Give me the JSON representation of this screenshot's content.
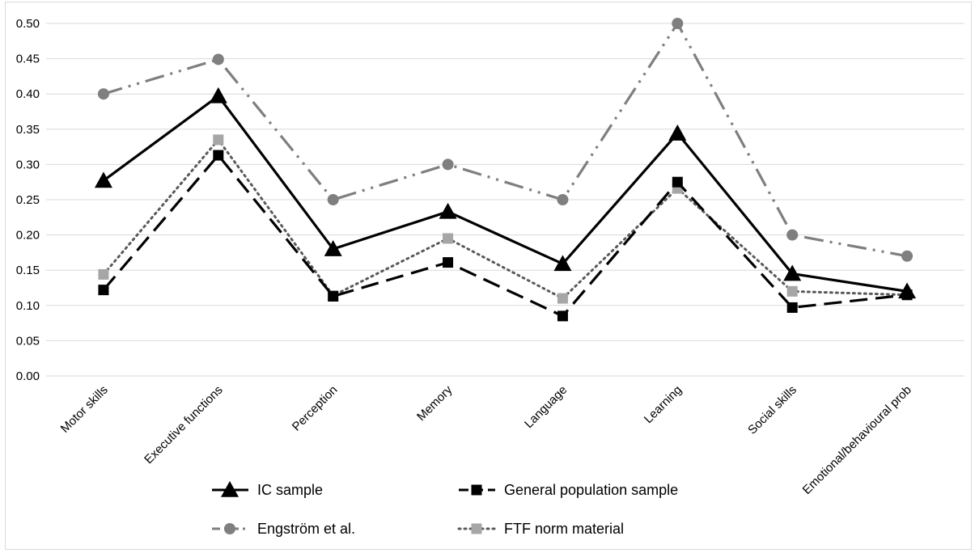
{
  "chart_data": {
    "type": "line",
    "title": "",
    "xlabel": "",
    "ylabel": "",
    "ylim": [
      0,
      0.5
    ],
    "y_ticks": [
      "0.00",
      "0.05",
      "0.10",
      "0.15",
      "0.20",
      "0.25",
      "0.30",
      "0.35",
      "0.40",
      "0.45",
      "0.50"
    ],
    "grid": "horizontal",
    "legend_position": "bottom",
    "categories": [
      "Motor skills",
      "Executive functions",
      "Perception",
      "Memory",
      "Language",
      "Learning",
      "Social skills",
      "Emotional/behavioural prob"
    ],
    "series": [
      {
        "name": "IC sample",
        "values": [
          0.277,
          0.397,
          0.18,
          0.233,
          0.159,
          0.344,
          0.145,
          0.12
        ],
        "color": "#000000",
        "dash": "solid",
        "marker": "triangle",
        "marker_color": "#000000"
      },
      {
        "name": "General population sample",
        "values": [
          0.122,
          0.313,
          0.113,
          0.161,
          0.085,
          0.275,
          0.097,
          0.115
        ],
        "color": "#000000",
        "dash": "long-dash",
        "marker": "square",
        "marker_color": "#000000"
      },
      {
        "name": "Engström et al.",
        "values": [
          0.4,
          0.449,
          0.25,
          0.3,
          0.25,
          0.5,
          0.2,
          0.17
        ],
        "color": "#7f7f7f",
        "dash": "long-dash-dot-dot",
        "marker": "circle",
        "marker_color": "#7f7f7f"
      },
      {
        "name": "FTF norm material",
        "values": [
          0.144,
          0.335,
          0.114,
          0.195,
          0.11,
          0.266,
          0.12,
          0.115
        ],
        "color": "#595959",
        "dash": "dotted",
        "marker": "square",
        "marker_color": "#a6a6a6"
      }
    ]
  }
}
